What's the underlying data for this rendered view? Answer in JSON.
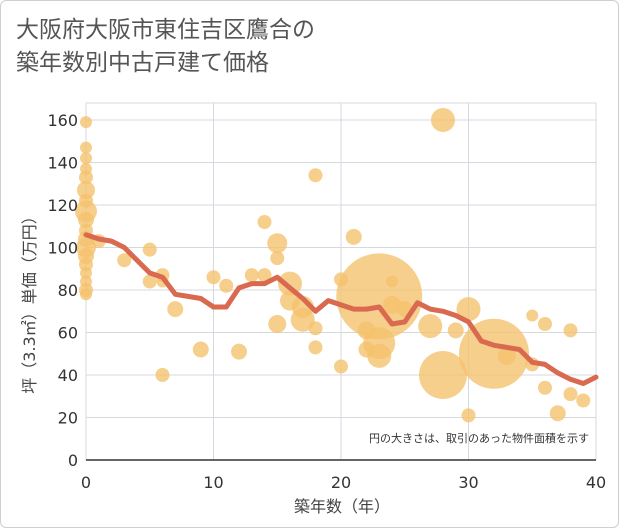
{
  "title_lines": [
    "大阪府大阪市東住吉区鷹合の",
    "築年数別中古戸建て価格"
  ],
  "chart_data": {
    "type": "scatter",
    "xlabel": "築年数（年）",
    "ylabel": "坪（3.3㎡）単価（万円）",
    "xlim": [
      0,
      40
    ],
    "ylim": [
      0,
      168
    ],
    "xticks": [
      "0",
      "10",
      "20",
      "30",
      "40"
    ],
    "yticks": [
      "0",
      "20",
      "40",
      "60",
      "80",
      "100",
      "120",
      "140",
      "160"
    ],
    "annotation": "円の大きさは、取引のあった物件面積を示す",
    "colors": {
      "bubble": "#f5c26b",
      "line": "#d9694f",
      "grid": "#d4d9e0"
    },
    "points": [
      [
        0,
        159,
        6
      ],
      [
        0,
        147,
        6
      ],
      [
        0,
        142,
        6
      ],
      [
        0,
        137,
        6
      ],
      [
        0,
        133,
        7
      ],
      [
        0,
        127,
        9
      ],
      [
        0,
        122,
        7
      ],
      [
        0,
        117,
        11
      ],
      [
        0,
        113,
        8
      ],
      [
        0,
        108,
        7
      ],
      [
        0,
        104,
        8
      ],
      [
        0,
        100,
        10
      ],
      [
        0,
        96,
        8
      ],
      [
        0,
        92,
        7
      ],
      [
        0,
        88,
        6
      ],
      [
        0,
        84,
        6
      ],
      [
        0,
        80,
        7
      ],
      [
        0,
        78,
        6
      ],
      [
        1,
        103,
        7
      ],
      [
        3,
        94,
        7
      ],
      [
        5,
        99,
        7
      ],
      [
        5,
        84,
        7
      ],
      [
        6,
        87,
        7
      ],
      [
        6,
        84,
        6
      ],
      [
        6,
        40,
        7
      ],
      [
        7,
        71,
        8
      ],
      [
        9,
        52,
        8
      ],
      [
        10,
        86,
        7
      ],
      [
        11,
        82,
        7
      ],
      [
        12,
        51,
        8
      ],
      [
        13,
        87,
        7
      ],
      [
        14,
        112,
        7
      ],
      [
        14,
        87,
        7
      ],
      [
        15,
        102,
        10
      ],
      [
        15,
        95,
        7
      ],
      [
        15,
        64,
        9
      ],
      [
        16,
        83,
        12
      ],
      [
        16,
        75,
        10
      ],
      [
        17,
        72,
        11
      ],
      [
        17,
        66,
        12
      ],
      [
        18,
        134,
        7
      ],
      [
        18,
        62,
        7
      ],
      [
        18,
        53,
        7
      ],
      [
        20,
        85,
        7
      ],
      [
        20,
        44,
        7
      ],
      [
        21,
        105,
        8
      ],
      [
        22,
        61,
        9
      ],
      [
        22,
        52,
        8
      ],
      [
        23,
        77,
        43
      ],
      [
        23,
        55,
        16
      ],
      [
        23,
        49,
        12
      ],
      [
        24,
        84,
        6
      ],
      [
        24,
        73,
        9
      ],
      [
        25,
        71,
        8
      ],
      [
        27,
        63,
        12
      ],
      [
        28,
        40,
        24
      ],
      [
        28,
        160,
        12
      ],
      [
        29,
        61,
        8
      ],
      [
        30,
        71,
        12
      ],
      [
        30,
        21,
        7
      ],
      [
        32,
        50,
        35
      ],
      [
        33,
        49,
        9
      ],
      [
        35,
        68,
        6
      ],
      [
        35,
        45,
        7
      ],
      [
        36,
        64,
        7
      ],
      [
        36,
        34,
        7
      ],
      [
        37,
        22,
        8
      ],
      [
        38,
        61,
        7
      ],
      [
        38,
        31,
        7
      ],
      [
        39,
        28,
        7
      ]
    ],
    "trend": {
      "x": [
        0,
        1,
        2,
        3,
        4,
        5,
        6,
        7,
        8,
        9,
        10,
        11,
        12,
        13,
        14,
        15,
        16,
        17,
        18,
        19,
        20,
        21,
        22,
        23,
        24,
        25,
        26,
        27,
        28,
        29,
        30,
        31,
        32,
        33,
        34,
        35,
        36,
        37,
        38,
        39,
        40
      ],
      "y": [
        106,
        104,
        103,
        100,
        94,
        88,
        86,
        78,
        77,
        76,
        72,
        72,
        81,
        83,
        83,
        86,
        81,
        76,
        70,
        75,
        73,
        71,
        71,
        72,
        64,
        65,
        74,
        71,
        70,
        68,
        65,
        56,
        54,
        53,
        52,
        46,
        45,
        41,
        38,
        36,
        39
      ]
    }
  }
}
